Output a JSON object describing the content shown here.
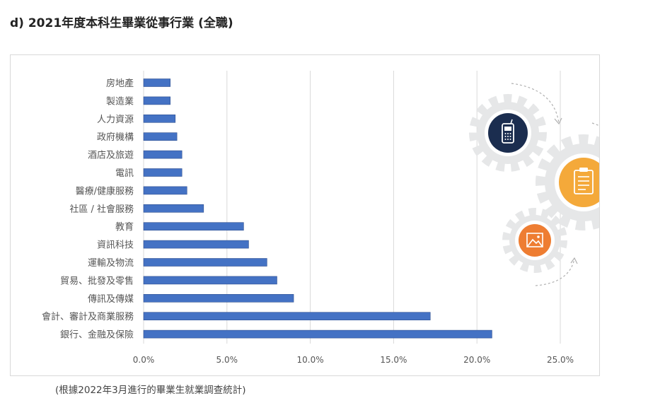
{
  "page": {
    "title": "d) 2021年度本科生畢業從事行業 (全職)",
    "footnote": "(根據2022年3月進行的畢業生就業調查統計)"
  },
  "icons": [
    "mobile-phone-icon",
    "clipboard-icon",
    "picture-icon"
  ],
  "colors": {
    "bar": "#4472c4",
    "bar_stroke": "#2f4f8f",
    "gear": "#e6e7e8",
    "navy": "#1b2d4f",
    "yellow": "#f4a93a",
    "orange": "#ee7d32"
  },
  "chart_data": {
    "type": "bar",
    "orientation": "horizontal",
    "categories": [
      "房地產",
      "製造業",
      "人力資源",
      "政府機構",
      "酒店及旅遊",
      "電訊",
      "醫療/健康服務",
      "社區 / 社會服務",
      "教育",
      "資訊科技",
      "運輸及物流",
      "貿易、批發及零售",
      "傳訊及傳媒",
      "會計、審計及商業服務",
      "銀行、金融及保險"
    ],
    "values": [
      1.6,
      1.6,
      1.9,
      2.0,
      2.3,
      2.3,
      2.6,
      3.6,
      6.0,
      6.3,
      7.4,
      8.0,
      9.0,
      17.2,
      20.9
    ],
    "value_unit": "%",
    "xlim": [
      0,
      25
    ],
    "xticks": [
      0,
      5,
      10,
      15,
      20,
      25
    ],
    "xtick_labels": [
      "0.0%",
      "5.0%",
      "10.0%",
      "15.0%",
      "20.0%",
      "25.0%"
    ],
    "grid": "vertical",
    "legend": "none",
    "title": "",
    "xlabel": "",
    "ylabel": ""
  }
}
